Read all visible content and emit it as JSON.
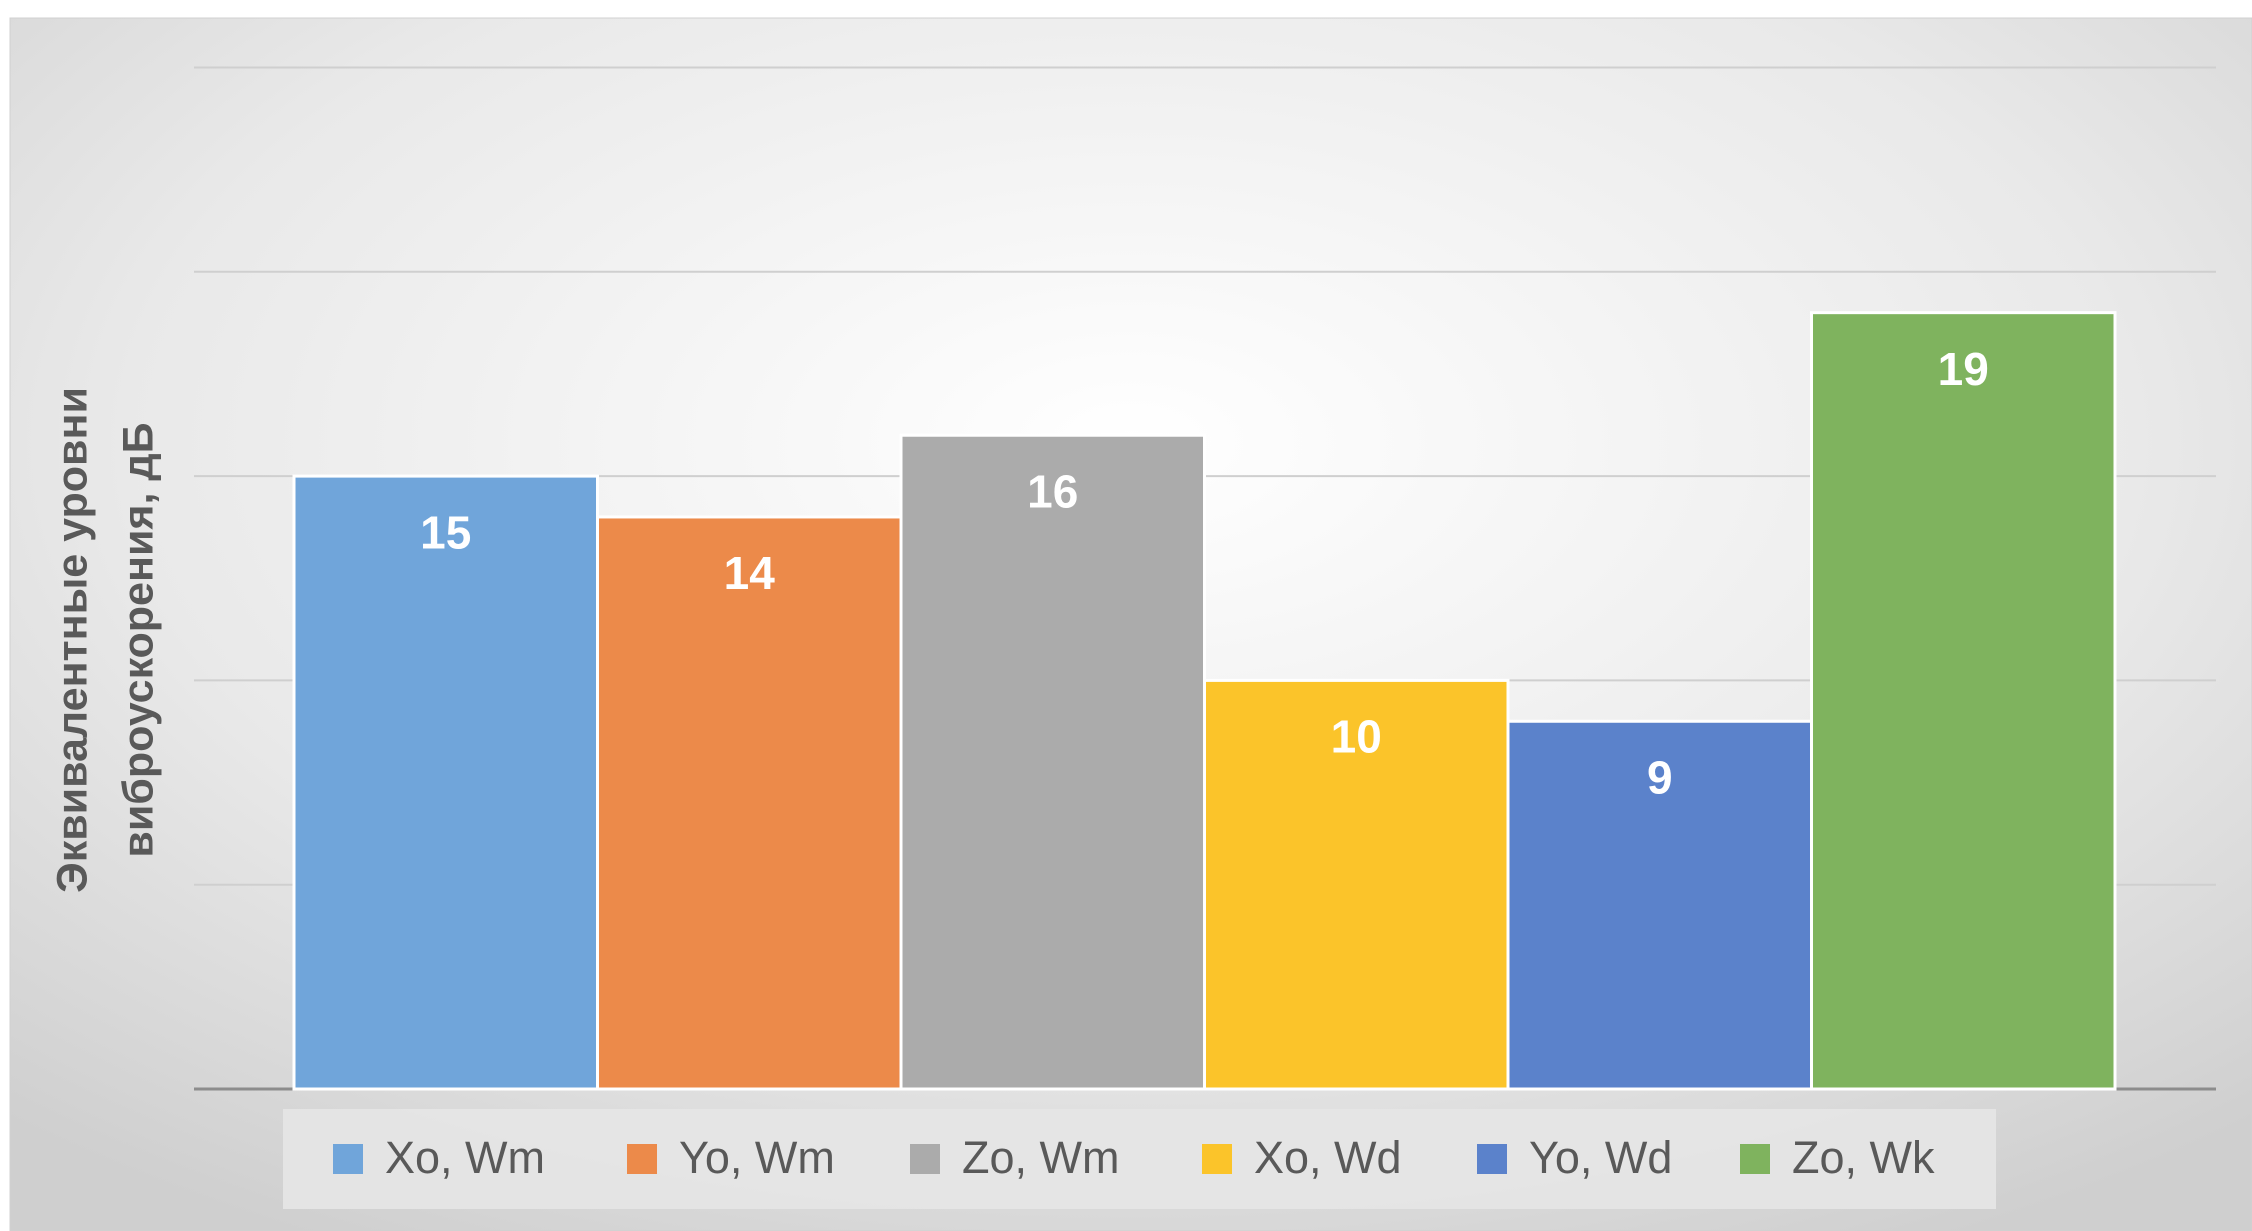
{
  "chart_data": {
    "type": "bar",
    "y_label": [
      "Эквивалентные уровни",
      "виброускорения, дБ"
    ],
    "categories": [
      null
    ],
    "series": [
      {
        "name": "Xo, Wm",
        "color": "#70a5da",
        "values": [
          15
        ]
      },
      {
        "name": "Yo, Wm",
        "color": "#ec8a4a",
        "values": [
          14
        ]
      },
      {
        "name": "Zo, Wm",
        "color": "#ababab",
        "values": [
          16
        ]
      },
      {
        "name": "Xo, Wd",
        "color": "#fbc42a",
        "values": [
          10
        ]
      },
      {
        "name": "Yo, Wd",
        "color": "#5b82cb",
        "values": [
          9
        ]
      },
      {
        "name": "Zo, Wk",
        "color": "#7fb35e",
        "values": [
          19
        ]
      }
    ],
    "ylim": [
      0,
      25
    ],
    "yticks": [
      0,
      5,
      10,
      15,
      20,
      25
    ],
    "grid": true,
    "legend": "bottom"
  }
}
